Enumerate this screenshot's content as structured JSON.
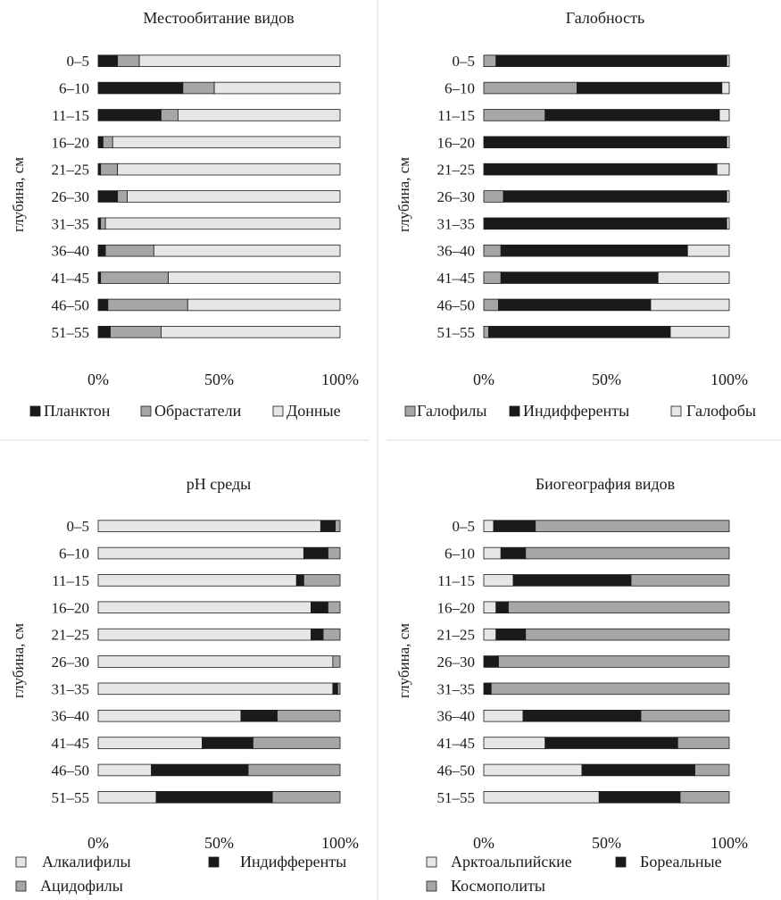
{
  "chart_data": [
    {
      "type": "bar",
      "orientation": "horizontal",
      "stacked": "percent",
      "title": "Местообитание видов",
      "ylabel": "глубина, см",
      "xlabel": "",
      "categories": [
        "0–5",
        "6–10",
        "11–15",
        "16–20",
        "21–25",
        "26–30",
        "31–35",
        "36–40",
        "41–45",
        "46–50",
        "51–55"
      ],
      "xticks": [
        "0%",
        "50%",
        "100%"
      ],
      "xlim": [
        0,
        100
      ],
      "grid": false,
      "legend_position": "bottom",
      "series": [
        {
          "name": "Планктон",
          "color": "#1a1a1a",
          "values": [
            8,
            35,
            26,
            2,
            1,
            8,
            1,
            3,
            1,
            4,
            5
          ]
        },
        {
          "name": "Обрастатели",
          "color": "#a6a6a6",
          "values": [
            9,
            13,
            7,
            4,
            7,
            4,
            2,
            20,
            28,
            33,
            21
          ]
        },
        {
          "name": "Донные",
          "color": "#e6e6e6",
          "values": [
            83,
            52,
            67,
            94,
            92,
            88,
            97,
            77,
            71,
            63,
            74
          ]
        }
      ]
    },
    {
      "type": "bar",
      "orientation": "horizontal",
      "stacked": "percent",
      "title": "Галобность",
      "ylabel": "глубина, см",
      "xlabel": "",
      "categories": [
        "0–5",
        "6–10",
        "11–15",
        "16–20",
        "21–25",
        "26–30",
        "31–35",
        "36–40",
        "41–45",
        "46–50",
        "51–55"
      ],
      "xticks": [
        "0%",
        "50%",
        "100%"
      ],
      "xlim": [
        0,
        100
      ],
      "grid": false,
      "legend_position": "bottom",
      "series": [
        {
          "name": "Галофилы",
          "color": "#a6a6a6",
          "values": [
            5,
            38,
            25,
            0,
            0,
            8,
            0,
            7,
            7,
            6,
            2
          ]
        },
        {
          "name": "Индифференты",
          "color": "#1a1a1a",
          "values": [
            94,
            59,
            71,
            99,
            95,
            91,
            99,
            76,
            64,
            62,
            74
          ]
        },
        {
          "name": "Галофобы",
          "color": "#e6e6e6",
          "values": [
            1,
            3,
            4,
            1,
            5,
            1,
            1,
            17,
            29,
            32,
            24
          ]
        }
      ]
    },
    {
      "type": "bar",
      "orientation": "horizontal",
      "stacked": "percent",
      "title": "pH среды",
      "ylabel": "глубина, см",
      "xlabel": "",
      "categories": [
        "0–5",
        "6–10",
        "11–15",
        "16–20",
        "21–25",
        "26–30",
        "31–35",
        "36–40",
        "41–45",
        "46–50",
        "51–55"
      ],
      "xticks": [
        "0%",
        "50%",
        "100%"
      ],
      "xlim": [
        0,
        100
      ],
      "grid": false,
      "legend_position": "bottom",
      "series": [
        {
          "name": "Алкалифилы",
          "color": "#e6e6e6",
          "values": [
            92,
            85,
            82,
            88,
            88,
            97,
            97,
            59,
            43,
            22,
            24
          ]
        },
        {
          "name": "Индифференты",
          "color": "#1a1a1a",
          "values": [
            6,
            10,
            3,
            7,
            5,
            0,
            2,
            15,
            21,
            40,
            48
          ]
        },
        {
          "name": "Ацидофилы",
          "color": "#a6a6a6",
          "values": [
            2,
            5,
            15,
            5,
            7,
            3,
            1,
            26,
            36,
            38,
            28
          ]
        }
      ]
    },
    {
      "type": "bar",
      "orientation": "horizontal",
      "stacked": "percent",
      "title": "Биогеография видов",
      "ylabel": "глубина, см",
      "xlabel": "",
      "categories": [
        "0–5",
        "6–10",
        "11–15",
        "16–20",
        "21–25",
        "26–30",
        "31–35",
        "36–40",
        "41–45",
        "46–50",
        "51–55"
      ],
      "xticks": [
        "0%",
        "50%",
        "100%"
      ],
      "xlim": [
        0,
        100
      ],
      "grid": false,
      "legend_position": "bottom",
      "series": [
        {
          "name": "Арктоальпийские",
          "color": "#e6e6e6",
          "values": [
            4,
            7,
            12,
            5,
            5,
            0,
            0,
            16,
            25,
            40,
            47
          ]
        },
        {
          "name": "Бореальные",
          "color": "#1a1a1a",
          "values": [
            17,
            10,
            48,
            5,
            12,
            6,
            3,
            48,
            54,
            46,
            33
          ]
        },
        {
          "name": "Космополиты",
          "color": "#a6a6a6",
          "values": [
            79,
            83,
            40,
            90,
            83,
            94,
            97,
            36,
            21,
            14,
            20
          ]
        }
      ]
    }
  ]
}
